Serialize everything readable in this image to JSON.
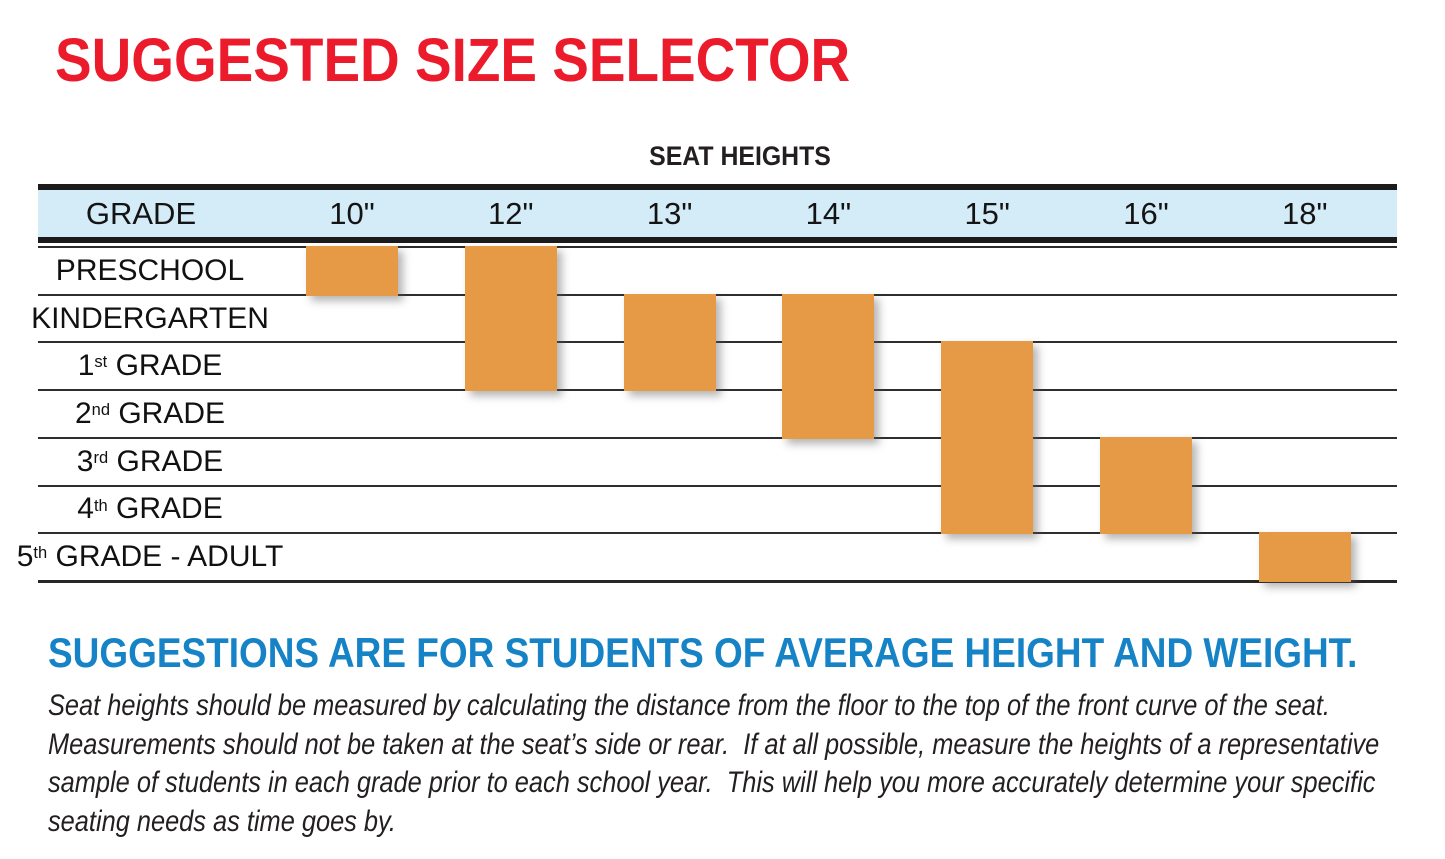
{
  "page": {
    "title": "SUGGESTED SIZE SELECTOR"
  },
  "table": {
    "caption": "SEAT HEIGHTS",
    "grade_header": "GRADE",
    "columns": [
      "10\"",
      "12\"",
      "13\"",
      "14\"",
      "15\"",
      "16\"",
      "18\""
    ],
    "rows": [
      {
        "num": "PRESCHOOL",
        "sup": "",
        "rest": ""
      },
      {
        "num": "KINDERGARTEN",
        "sup": "",
        "rest": ""
      },
      {
        "num": "1",
        "sup": "st",
        "rest": " GRADE"
      },
      {
        "num": "2",
        "sup": "nd",
        "rest": " GRADE"
      },
      {
        "num": "3",
        "sup": "rd",
        "rest": " GRADE"
      },
      {
        "num": "4",
        "sup": "th",
        "rest": " GRADE"
      },
      {
        "num": "5",
        "sup": "th",
        "rest": " GRADE - ADULT"
      }
    ]
  },
  "chart_data": {
    "type": "bar",
    "subtype": "grade-range-columns",
    "title": "SEAT HEIGHTS",
    "xlabel": "Seat height (inches)",
    "ylabel": "Grade",
    "categories": [
      "PRESCHOOL",
      "KINDERGARTEN",
      "1st GRADE",
      "2nd GRADE",
      "3rd GRADE",
      "4th GRADE",
      "5th GRADE - ADULT"
    ],
    "series": [
      {
        "name": "10\"",
        "grades": [
          "PRESCHOOL",
          "PRESCHOOL"
        ],
        "row_span": [
          0,
          0
        ]
      },
      {
        "name": "12\"",
        "grades": [
          "PRESCHOOL",
          "1st GRADE"
        ],
        "row_span": [
          0,
          2
        ]
      },
      {
        "name": "13\"",
        "grades": [
          "KINDERGARTEN",
          "1st GRADE"
        ],
        "row_span": [
          1,
          2
        ]
      },
      {
        "name": "14\"",
        "grades": [
          "KINDERGARTEN",
          "2nd GRADE"
        ],
        "row_span": [
          1,
          3
        ]
      },
      {
        "name": "15\"",
        "grades": [
          "1st GRADE",
          "4th GRADE"
        ],
        "row_span": [
          2,
          5
        ]
      },
      {
        "name": "16\"",
        "grades": [
          "3rd GRADE",
          "4th GRADE"
        ],
        "row_span": [
          4,
          5
        ]
      },
      {
        "name": "18\"",
        "grades": [
          "5th GRADE - ADULT",
          "5th GRADE - ADULT"
        ],
        "row_span": [
          6,
          6
        ]
      }
    ],
    "bar_color": "#e69a45",
    "grid": "horizontal-rules",
    "legend": "none"
  },
  "footer": {
    "subtitle": "SUGGESTIONS ARE FOR STUDENTS OF AVERAGE HEIGHT AND WEIGHT.",
    "body_lines": [
      "Seat heights should be measured by calculating the distance from the floor to the top of the front curve of the seat.",
      "Measurements should not be taken at the seat’s side or rear.  If at all possible, measure the heights of a representative",
      "sample of students in each grade prior to each school year.  This will help you more accurately determine your specific",
      "seating needs as time goes by."
    ]
  },
  "colors": {
    "title_red": "#ec1b2c",
    "header_blue": "#d4ecf8",
    "bar_orange": "#e69a45",
    "subtitle_blue": "#1583c5",
    "text_dark": "#231f20"
  }
}
